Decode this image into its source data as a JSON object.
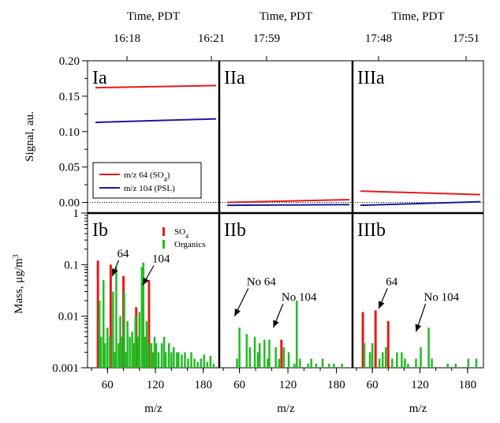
{
  "chart_data": [
    {
      "type": "line",
      "panel_label": "Ia",
      "xlabel": "Time, PDT",
      "x_tick_labels": [
        "16:18",
        "16:21"
      ],
      "ylabel": "Signal, au.",
      "ylim": [
        0,
        0.2
      ],
      "y_ticks": [
        "0.00",
        "0.05",
        "0.10",
        "0.15",
        "0.20"
      ],
      "legend": {
        "position": "bottom-left"
      },
      "series": [
        {
          "legend_html": "m/z 64 (SO<tspan baseline-shift=\"sub\" font-size=\"8\">4</tspan>)",
          "color": "#e51b1b",
          "values": [
            0.162,
            0.165
          ]
        },
        {
          "legend_html": "m/z 104 (PSL)",
          "color": "#1a1aa6",
          "values": [
            0.113,
            0.118
          ]
        }
      ]
    },
    {
      "type": "line",
      "panel_label": "IIa",
      "xlabel": "Time, PDT",
      "x_tick_labels": [
        "17:59"
      ],
      "series": [
        {
          "color": "#e51b1b",
          "values": [
            0.0,
            0.004
          ]
        },
        {
          "color": "#1a1aa6",
          "values": [
            -0.004,
            -0.003
          ]
        }
      ]
    },
    {
      "type": "line",
      "panel_label": "IIIa",
      "xlabel": "Time, PDT",
      "x_tick_labels": [
        "17:48",
        "17:51"
      ],
      "series": [
        {
          "color": "#e51b1b",
          "values": [
            0.016,
            0.011
          ]
        },
        {
          "color": "#1a1aa6",
          "values": [
            -0.004,
            0.001
          ]
        }
      ]
    },
    {
      "type": "bar",
      "panel_label": "Ib",
      "xlabel": "m/z",
      "ylabel_html": "Mass, μg/m<tspan baseline-shift=\"super\" font-size=\"10\">3</tspan>",
      "y_scale": "log",
      "ylim": [
        0.001,
        1
      ],
      "y_ticks": [
        "0.001",
        "0.01",
        "0.1",
        "1"
      ],
      "x_ticks": [
        "60",
        "120",
        "180"
      ],
      "xlim": [
        35,
        200
      ],
      "legend": {
        "position": "top-right"
      },
      "series": [
        {
          "legend_html": "SO<tspan baseline-shift=\"sub\" font-size=\"8\">4</tspan>",
          "color": "#e51b1b",
          "x": [
            48,
            64,
            80,
            96,
            112
          ],
          "values": [
            0.12,
            0.1,
            0.06,
            0.015,
            0.05
          ]
        },
        {
          "legend_html": "Organics",
          "color": "#22bb22",
          "x": [
            50,
            52,
            55,
            57,
            60,
            63,
            67,
            69,
            71,
            74,
            76,
            78,
            81,
            83,
            85,
            88,
            91,
            93,
            95,
            98,
            100,
            103,
            105,
            107,
            109,
            111,
            115,
            117,
            119,
            121,
            124,
            128,
            131,
            133,
            137,
            140,
            143,
            147,
            149,
            153,
            157,
            161,
            165,
            169,
            173,
            177,
            181,
            185,
            189,
            193
          ],
          "values": [
            0.02,
            0.004,
            0.05,
            0.003,
            0.006,
            0.004,
            0.03,
            0.002,
            0.09,
            0.003,
            0.01,
            0.004,
            0.03,
            0.002,
            0.008,
            0.004,
            0.005,
            0.003,
            0.01,
            0.004,
            0.012,
            0.09,
            0.11,
            0.004,
            0.008,
            0.003,
            0.003,
            0.002,
            0.004,
            0.003,
            0.002,
            0.003,
            0.004,
            0.002,
            0.003,
            0.002,
            0.0025,
            0.002,
            0.002,
            0.0018,
            0.002,
            0.0015,
            0.002,
            0.0015,
            0.0013,
            0.0015,
            0.0018,
            0.0013,
            0.0017,
            0.0012
          ]
        }
      ],
      "annotations": [
        {
          "text": "64",
          "tx": 72,
          "ty": 0.14,
          "ax": 66,
          "ay": 0.06
        },
        {
          "text": "104",
          "tx": 116,
          "ty": 0.11,
          "ax": 104,
          "ay": 0.04
        }
      ]
    },
    {
      "type": "bar",
      "panel_label": "IIb",
      "xlabel": "m/z",
      "x_ticks": [
        "60",
        "120",
        "180"
      ],
      "xlim": [
        35,
        200
      ],
      "series": [
        {
          "color": "#e51b1b",
          "x": [
            112
          ],
          "values": [
            0.0035
          ]
        },
        {
          "color": "#22bb22",
          "x": [
            57,
            60,
            69,
            73,
            79,
            83,
            85,
            91,
            95,
            97,
            105,
            109,
            115,
            121,
            128,
            131,
            135,
            145,
            149,
            155,
            163,
            171,
            177,
            187
          ],
          "values": [
            0.0015,
            0.006,
            0.0045,
            0.0025,
            0.004,
            0.002,
            0.003,
            0.0035,
            0.0015,
            0.0035,
            0.0025,
            0.0015,
            0.0025,
            0.002,
            0.0012,
            0.02,
            0.0015,
            0.0012,
            0.0015,
            0.0012,
            0.0015,
            0.0012,
            0.0012,
            0.0012
          ]
        }
      ],
      "annotations": [
        {
          "text": "No 64",
          "tx": 69,
          "ty": 0.04,
          "ax": 54,
          "ay": 0.01
        },
        {
          "text": "No 104",
          "tx": 112,
          "ty": 0.02,
          "ax": 102,
          "ay": 0.006
        }
      ]
    },
    {
      "type": "bar",
      "panel_label": "IIIb",
      "xlabel": "m/z",
      "x_ticks": [
        "60",
        "120",
        "180"
      ],
      "xlim": [
        35,
        200
      ],
      "series": [
        {
          "color": "#e51b1b",
          "x": [
            48,
            64,
            80
          ],
          "values": [
            0.012,
            0.013,
            0.008
          ]
        },
        {
          "color": "#22bb22",
          "x": [
            50,
            57,
            60,
            69,
            73,
            77,
            85,
            91,
            97,
            101,
            105,
            115,
            121,
            131,
            135,
            155,
            165,
            181,
            191
          ],
          "values": [
            0.003,
            0.002,
            0.003,
            0.0015,
            0.002,
            0.0025,
            0.0015,
            0.002,
            0.002,
            0.0015,
            0.0012,
            0.0015,
            0.0025,
            0.006,
            0.0015,
            0.0012,
            0.0012,
            0.0015,
            0.0015
          ]
        }
      ],
      "annotations": [
        {
          "text": "64",
          "tx": 77,
          "ty": 0.04,
          "ax": 68,
          "ay": 0.014
        },
        {
          "text": "No 104",
          "tx": 125,
          "ty": 0.02,
          "ax": 115,
          "ay": 0.005
        }
      ]
    }
  ]
}
